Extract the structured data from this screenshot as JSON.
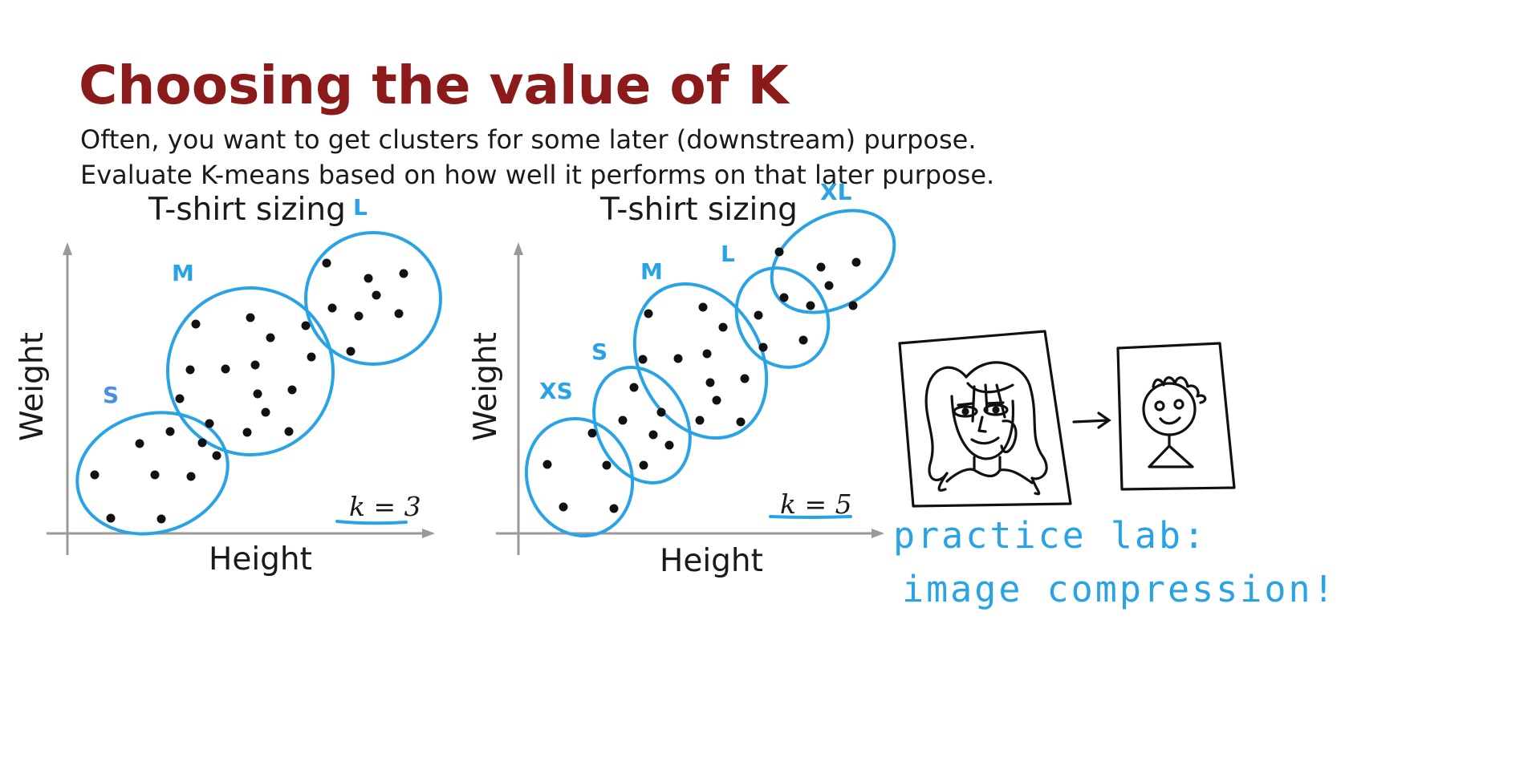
{
  "slide": {
    "title": "Choosing the value of K",
    "subtitle_lines": [
      "Often, you want to get clusters for some later (downstream) purpose.",
      "Evaluate K-means based on how well it performs on that later purpose."
    ]
  },
  "colors": {
    "title": "#8b1a1a",
    "cluster_outline": "#2aa3e6",
    "cluster_label": "#2aa3e6",
    "cluster_label_small": "#4a8fe0",
    "ink": "#111111",
    "axis": "#999999"
  },
  "plots": [
    {
      "title": "T-shirt sizing",
      "xlabel": "Height",
      "ylabel": "Weight",
      "k_label": "k = 3",
      "clusters": [
        {
          "label": "S",
          "points": [
            [
              118,
              592
            ],
            [
              138,
              646
            ],
            [
              174,
              553
            ],
            [
              193,
              592
            ],
            [
              201,
              647
            ],
            [
              212,
              538
            ],
            [
              238,
              594
            ],
            [
              252,
              552
            ],
            [
              270,
              568
            ]
          ]
        },
        {
          "label": "M",
          "points": [
            [
              224,
              497
            ],
            [
              237,
              461
            ],
            [
              244,
              404
            ],
            [
              261,
              528
            ],
            [
              281,
              460
            ],
            [
              308,
              539
            ],
            [
              312,
              396
            ],
            [
              318,
              455
            ],
            [
              321,
              491
            ],
            [
              331,
              514
            ],
            [
              337,
              421
            ],
            [
              360,
              538
            ],
            [
              364,
              486
            ],
            [
              381,
              406
            ],
            [
              388,
              445
            ]
          ]
        },
        {
          "label": "L",
          "points": [
            [
              407,
              328
            ],
            [
              414,
              384
            ],
            [
              437,
              438
            ],
            [
              447,
              394
            ],
            [
              459,
              347
            ],
            [
              469,
              368
            ],
            [
              497,
              391
            ],
            [
              503,
              341
            ]
          ]
        }
      ]
    },
    {
      "title": "T-shirt sizing",
      "xlabel": "Height",
      "ylabel": "Weight",
      "k_label": "k = 5",
      "clusters": [
        {
          "label": "XS",
          "points": [
            [
              682,
              579
            ],
            [
              702,
              632
            ],
            [
              738,
              540
            ],
            [
              756,
              580
            ],
            [
              765,
              634
            ]
          ]
        },
        {
          "label": "S",
          "points": [
            [
              776,
              524
            ],
            [
              790,
              483
            ],
            [
              801,
              448
            ],
            [
              814,
              542
            ],
            [
              824,
              514
            ],
            [
              834,
              555
            ],
            [
              802,
              580
            ]
          ]
        },
        {
          "label": "M",
          "points": [
            [
              808,
              391
            ],
            [
              845,
              447
            ],
            [
              872,
              524
            ],
            [
              876,
              383
            ],
            [
              881,
              441
            ],
            [
              885,
              477
            ],
            [
              893,
              499
            ],
            [
              901,
              408
            ],
            [
              923,
              526
            ],
            [
              928,
              472
            ]
          ]
        },
        {
          "label": "L",
          "points": [
            [
              945,
              393
            ],
            [
              951,
              433
            ],
            [
              977,
              371
            ],
            [
              1001,
              424
            ],
            [
              1010,
              381
            ]
          ]
        },
        {
          "label": "XL",
          "points": [
            [
              971,
              314
            ],
            [
              1023,
              333
            ],
            [
              1033,
              356
            ],
            [
              1063,
              381
            ],
            [
              1067,
              327
            ]
          ]
        }
      ]
    }
  ],
  "annotation": {
    "lines": [
      "practice lab:",
      "image compression!"
    ]
  }
}
